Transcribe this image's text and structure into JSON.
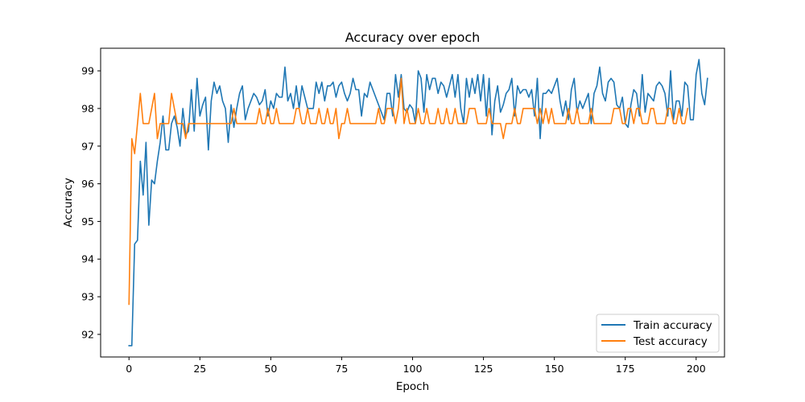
{
  "chart_data": {
    "type": "line",
    "title": "Accuracy over epoch",
    "xlabel": "Epoch",
    "ylabel": "Accuracy",
    "xlim": [
      -10,
      210
    ],
    "ylim": [
      91.4,
      99.6
    ],
    "xticks": [
      0,
      25,
      50,
      75,
      100,
      125,
      150,
      175,
      200
    ],
    "yticks": [
      92,
      93,
      94,
      95,
      96,
      97,
      98,
      99
    ],
    "grid": false,
    "legend": "lower-right",
    "series": [
      {
        "name": "Train accuracy",
        "color": "#1f77b4",
        "x_start": 0,
        "values": [
          91.7,
          91.7,
          94.4,
          94.5,
          96.6,
          95.7,
          97.1,
          94.9,
          96.1,
          96.0,
          96.6,
          97.1,
          97.8,
          96.9,
          96.9,
          97.6,
          97.8,
          97.5,
          97.0,
          98.0,
          97.3,
          97.4,
          98.5,
          97.4,
          98.8,
          97.8,
          98.1,
          98.3,
          96.9,
          98.2,
          98.7,
          98.4,
          98.6,
          98.2,
          98.0,
          97.1,
          98.1,
          97.5,
          98.0,
          98.4,
          98.6,
          97.7,
          98.0,
          98.2,
          98.4,
          98.3,
          98.1,
          98.2,
          98.5,
          97.8,
          98.2,
          98.0,
          98.4,
          98.3,
          98.3,
          99.1,
          98.2,
          98.4,
          98.0,
          98.6,
          98.0,
          98.6,
          98.3,
          98.0,
          98.0,
          98.0,
          98.7,
          98.4,
          98.7,
          98.2,
          98.6,
          98.6,
          98.7,
          98.3,
          98.6,
          98.7,
          98.4,
          98.2,
          98.4,
          98.8,
          98.5,
          98.5,
          97.8,
          98.4,
          98.3,
          98.7,
          98.5,
          98.3,
          98.1,
          97.9,
          97.7,
          98.4,
          98.4,
          97.8,
          98.9,
          98.3,
          98.9,
          98.0,
          97.9,
          98.1,
          98.0,
          97.6,
          99.0,
          98.8,
          97.9,
          98.9,
          98.5,
          98.8,
          98.8,
          98.4,
          98.7,
          98.6,
          98.3,
          98.6,
          98.9,
          98.3,
          98.9,
          98.0,
          97.6,
          98.8,
          98.3,
          98.8,
          98.4,
          98.9,
          98.2,
          98.9,
          97.8,
          98.8,
          97.3,
          98.2,
          98.6,
          97.9,
          98.1,
          98.4,
          98.5,
          98.8,
          97.8,
          98.6,
          98.4,
          98.5,
          98.5,
          98.3,
          98.5,
          97.8,
          98.8,
          97.2,
          98.4,
          98.4,
          98.5,
          98.4,
          98.6,
          98.8,
          98.2,
          97.8,
          98.2,
          97.7,
          98.5,
          98.8,
          97.9,
          98.2,
          98.0,
          98.2,
          98.4,
          97.6,
          98.4,
          98.6,
          99.1,
          98.4,
          98.2,
          98.7,
          98.8,
          98.7,
          98.1,
          98.0,
          98.3,
          97.6,
          97.5,
          98.1,
          98.5,
          98.4,
          97.8,
          98.9,
          97.9,
          98.4,
          98.3,
          98.2,
          98.6,
          98.7,
          98.6,
          98.4,
          97.8,
          99.0,
          97.7,
          98.2,
          98.2,
          97.8,
          98.7,
          98.6,
          97.7,
          97.7,
          98.9,
          99.3,
          98.4,
          98.1,
          98.8
        ]
      },
      {
        "name": "Test accuracy",
        "color": "#ff7f0e",
        "x_start": 0,
        "values": [
          92.8,
          97.2,
          96.8,
          97.6,
          98.4,
          97.6,
          97.6,
          97.6,
          98.0,
          98.4,
          97.2,
          97.6,
          97.6,
          97.6,
          97.6,
          98.4,
          98.0,
          97.6,
          97.6,
          97.6,
          97.2,
          97.6,
          97.6,
          97.6,
          97.6,
          97.6,
          97.6,
          97.6,
          97.6,
          97.6,
          97.6,
          97.6,
          97.6,
          97.6,
          97.6,
          97.6,
          97.6,
          98.0,
          97.6,
          97.6,
          97.6,
          97.6,
          97.6,
          97.6,
          97.6,
          97.6,
          98.0,
          97.6,
          97.6,
          98.0,
          97.6,
          97.6,
          98.0,
          97.6,
          97.6,
          97.6,
          97.6,
          97.6,
          97.6,
          98.0,
          98.0,
          97.6,
          97.6,
          98.0,
          97.6,
          97.6,
          97.6,
          98.0,
          97.6,
          97.6,
          98.0,
          97.6,
          97.6,
          98.0,
          97.2,
          97.6,
          97.6,
          98.0,
          97.6,
          97.6,
          97.6,
          97.6,
          97.6,
          97.6,
          97.6,
          97.6,
          97.6,
          97.6,
          98.0,
          97.6,
          97.6,
          98.0,
          98.0,
          98.0,
          97.6,
          98.0,
          98.8,
          97.6,
          98.0,
          97.6,
          97.6,
          97.6,
          98.0,
          97.6,
          97.6,
          98.0,
          97.6,
          97.6,
          97.6,
          98.0,
          97.6,
          97.6,
          98.0,
          97.6,
          97.6,
          98.0,
          97.6,
          97.6,
          97.6,
          97.6,
          98.0,
          98.0,
          98.0,
          97.6,
          97.6,
          97.6,
          97.6,
          98.0,
          97.6,
          97.6,
          97.6,
          97.6,
          97.2,
          97.6,
          97.6,
          97.6,
          98.0,
          97.6,
          97.6,
          98.0,
          98.0,
          98.0,
          98.0,
          98.0,
          97.6,
          98.0,
          97.6,
          98.0,
          97.6,
          98.0,
          97.6,
          97.6,
          97.6,
          97.6,
          97.6,
          98.0,
          97.6,
          97.6,
          98.0,
          97.6,
          97.6,
          97.6,
          97.6,
          98.0,
          97.6,
          97.6,
          97.6,
          97.6,
          97.6,
          97.6,
          97.6,
          98.0,
          98.0,
          98.0,
          97.6,
          97.6,
          98.0,
          98.0,
          97.6,
          98.0,
          98.0,
          97.6,
          97.6,
          97.6,
          98.0,
          98.0,
          97.6,
          97.6,
          97.6,
          97.6,
          98.0,
          98.0,
          97.6,
          97.6,
          98.0,
          97.6,
          97.6,
          98.0
        ]
      }
    ]
  }
}
